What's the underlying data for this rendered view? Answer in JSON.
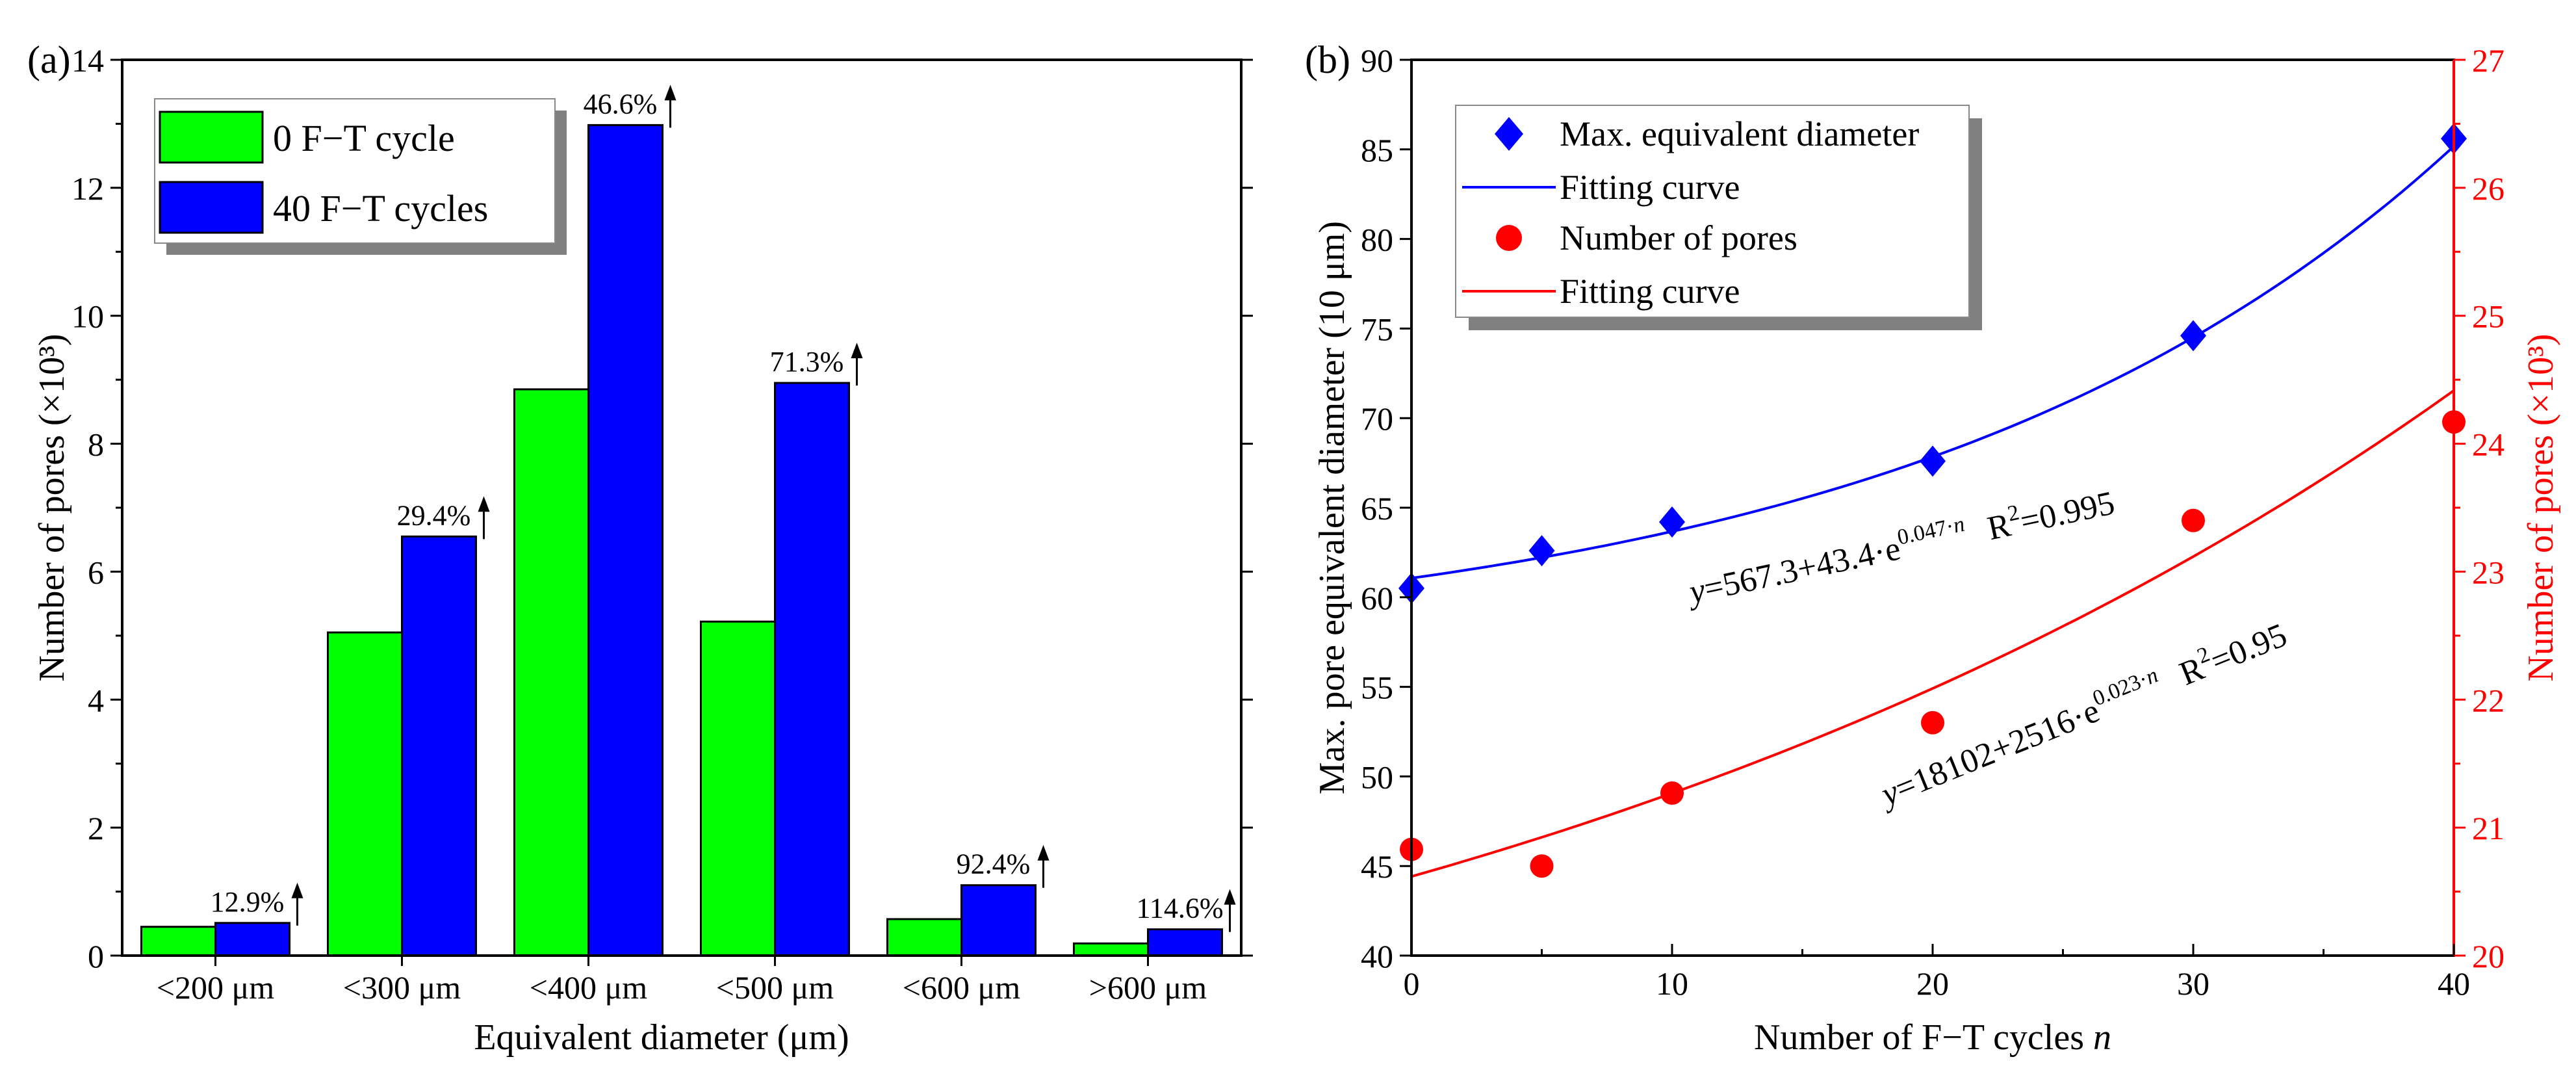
{
  "chart_data": [
    {
      "type": "bar",
      "panel_label": "(a)",
      "categories": [
        "<200 μm",
        "<300 μm",
        "<400 μm",
        "<500 μm",
        "<600 μm",
        ">600 μm"
      ],
      "series": [
        {
          "name": "0 F−T cycle",
          "color": "#00ff00",
          "values": [
            0.45,
            5.05,
            8.85,
            5.22,
            0.57,
            0.19
          ]
        },
        {
          "name": "40 F−T cycles",
          "color": "#0000ff",
          "values": [
            0.51,
            6.55,
            12.98,
            8.95,
            1.1,
            0.41
          ]
        }
      ],
      "increase_labels": [
        "12.9%",
        "29.4%",
        "46.6%",
        "71.3%",
        "92.4%",
        "114.6%"
      ],
      "xlabel": "Equivalent diameter (μm)",
      "ylabel": "Number of pores (×10³)",
      "ylim": [
        0,
        14
      ],
      "yticks": [
        0,
        2,
        4,
        6,
        8,
        10,
        12,
        14
      ],
      "legend_position": "top-left"
    },
    {
      "type": "scatter",
      "panel_label": "(b)",
      "xlabel_main": "Number of F−T cycles ",
      "xlabel_var": "n",
      "ylabel_left": "Max. pore equivalent diameter (10 μm)",
      "ylabel_right": "Number of pores (×10³)",
      "xlim": [
        0,
        40
      ],
      "xticks": [
        0,
        10,
        20,
        30,
        40
      ],
      "ylim_left": [
        40,
        90
      ],
      "yticks_left": [
        40,
        45,
        50,
        55,
        60,
        65,
        70,
        75,
        80,
        85,
        90
      ],
      "ylim_right": [
        20,
        27
      ],
      "yticks_right": [
        20,
        21,
        22,
        23,
        24,
        25,
        26,
        27
      ],
      "right_axis_color": "#ff0000",
      "series": [
        {
          "name": "Max. equivalent diameter",
          "axis": "left",
          "marker": "diamond",
          "color": "#0000ff",
          "x": [
            0,
            5,
            10,
            20,
            30,
            40
          ],
          "y": [
            60.5,
            62.6,
            64.2,
            67.6,
            74.6,
            85.6
          ]
        },
        {
          "name": "Number of pores",
          "axis": "right",
          "marker": "circle",
          "color": "#ff0000",
          "x": [
            0,
            5,
            10,
            20,
            30,
            40
          ],
          "y": [
            20.83,
            20.7,
            21.27,
            21.82,
            23.4,
            24.17
          ]
        }
      ],
      "fits": [
        {
          "name": "Fitting curve",
          "axis": "left",
          "color": "#0000ff",
          "a": 56.73,
          "b": 4.34,
          "k": 0.047
        },
        {
          "name": "Fitting curve",
          "axis": "right",
          "color": "#ff0000",
          "a": 18.102,
          "b": 2.516,
          "k": 0.023
        }
      ],
      "equations": [
        {
          "prefix": "y",
          "body": "=567.3+43.4·e",
          "exp": "0.047·",
          "exp_var": "n",
          "r2_label": "R",
          "r2_sup": "2",
          "r2_val": "=0.995",
          "color": "#000000"
        },
        {
          "prefix": "y",
          "body": "=18102+2516·e",
          "exp": "0.023·",
          "exp_var": "n",
          "r2_label": "R",
          "r2_sup": "2",
          "r2_val": "=0.95",
          "color": "#000000"
        }
      ],
      "legend_position": "top-left"
    }
  ]
}
